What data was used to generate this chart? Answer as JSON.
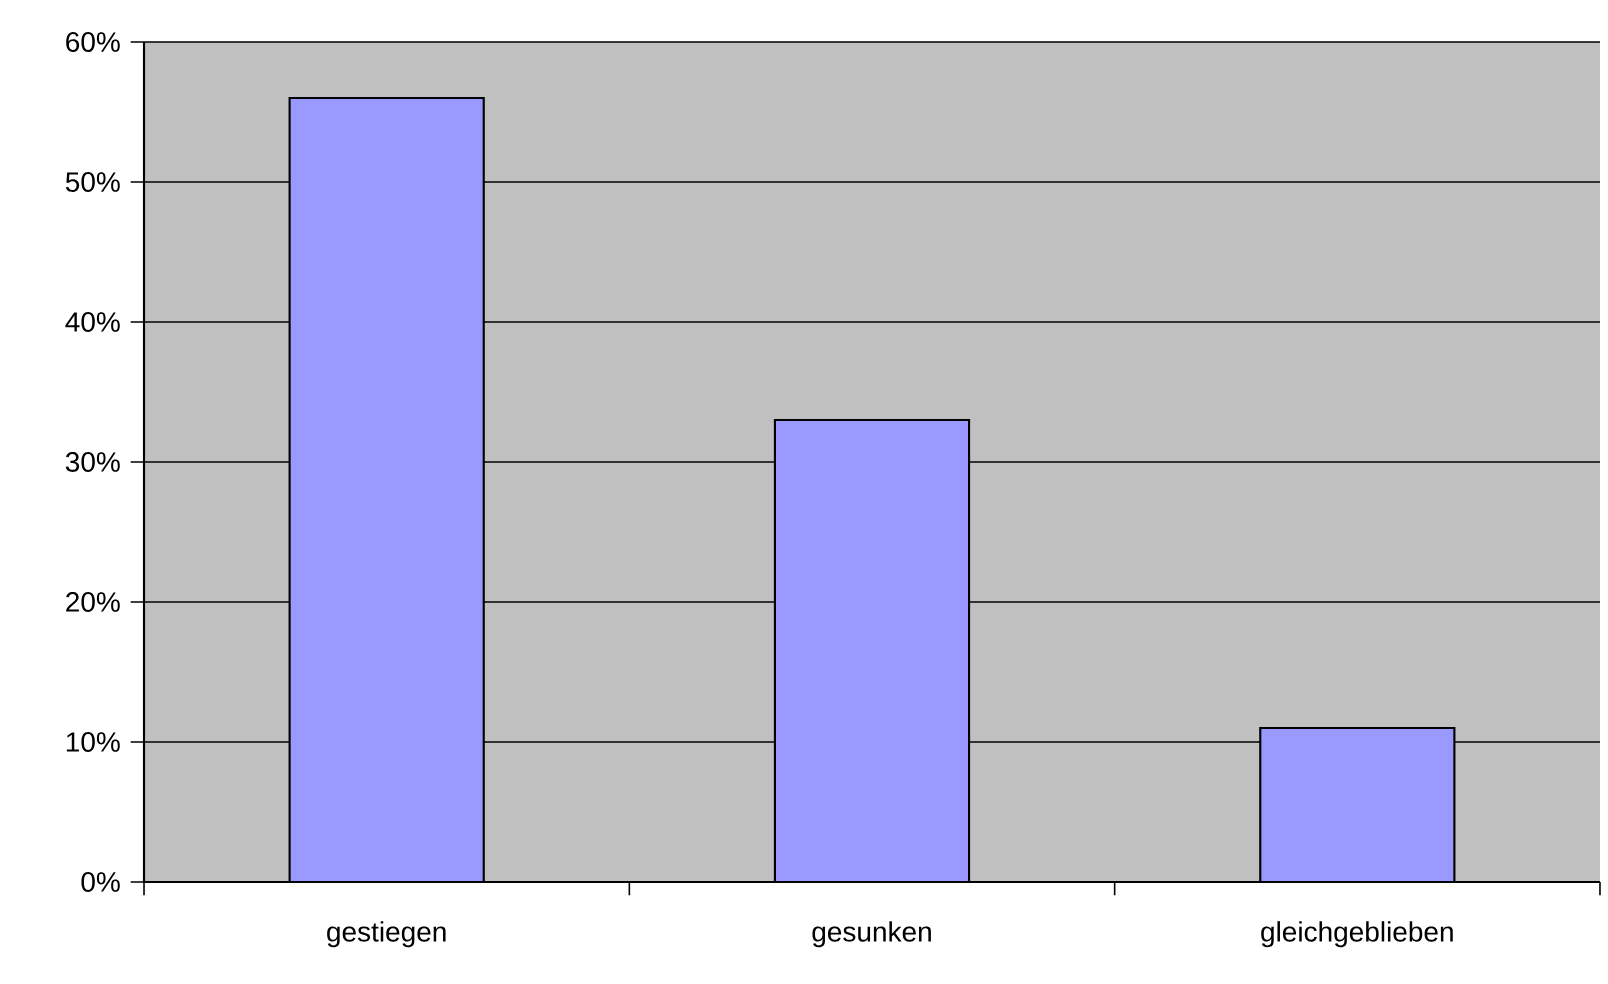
{
  "chart_data": {
    "type": "bar",
    "categories": [
      "gestiegen",
      "gesunken",
      "gleichgeblieben"
    ],
    "values": [
      56,
      33,
      11
    ],
    "color": "#9999ff",
    "ylim": [
      0,
      60
    ],
    "yticks": [
      {
        "value": 0,
        "label": "0%"
      },
      {
        "value": 10,
        "label": "10%"
      },
      {
        "value": 20,
        "label": "20%"
      },
      {
        "value": 30,
        "label": "30%"
      },
      {
        "value": 40,
        "label": "40%"
      },
      {
        "value": 50,
        "label": "50%"
      },
      {
        "value": 60,
        "label": "60%"
      }
    ],
    "grid": "y"
  }
}
